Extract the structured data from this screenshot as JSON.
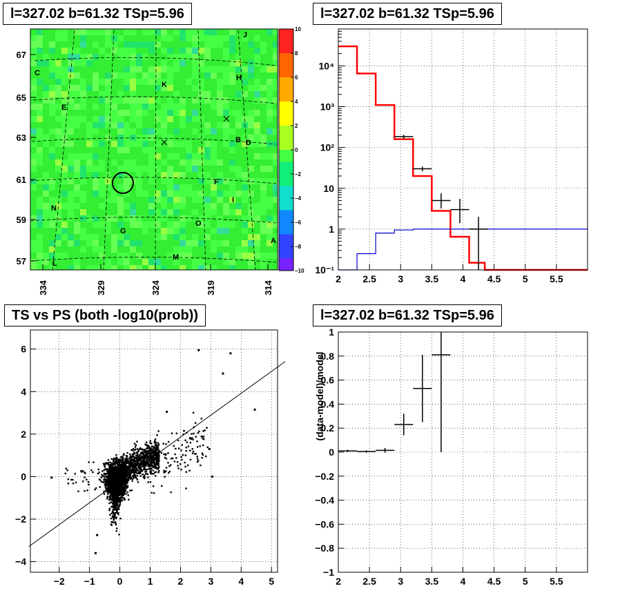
{
  "titles": {
    "skymap": "l=327.02 b=61.32 TSp=5.96",
    "spectrum": "l=327.02 b=61.32 TSp=5.96",
    "scatter": "TS vs PS (both -log10(prob))",
    "residual": "l=327.02 b=61.32 TSp=5.96"
  },
  "chart_data": [
    {
      "type": "heatmap",
      "title": "l=327.02 b=61.32 TSp=5.96",
      "x_ticks": [
        "334",
        "329",
        "324",
        "319",
        "314"
      ],
      "y_ticks": [
        "67",
        "65",
        "63",
        "61",
        "59",
        "57"
      ],
      "colorbar": {
        "range": [
          -10,
          10
        ],
        "ticks": [
          "10",
          "8",
          "6",
          "4",
          "2",
          "0",
          "−2",
          "−4",
          "−6",
          "−8",
          "−10"
        ]
      },
      "source_labels": [
        "J",
        "C",
        "H",
        "K",
        "E",
        "B",
        "D",
        "F",
        "I",
        "N",
        "G",
        "O",
        "A",
        "M",
        "L"
      ],
      "base_value": 0
    },
    {
      "type": "line",
      "title": "l=327.02 b=61.32 TSp=5.96",
      "x_ticks": [
        "2",
        "2.5",
        "3",
        "3.5",
        "4",
        "4.5",
        "5",
        "5.5"
      ],
      "y_ticks": [
        "10⁻¹",
        "1",
        "10",
        "10²",
        "10³",
        "10⁴"
      ],
      "xlim": [
        2,
        6
      ],
      "ylog": true,
      "ylim": [
        0.1,
        80000
      ],
      "grid": true,
      "series": [
        {
          "color": "#ff0000",
          "bins": [
            [
              2.0,
              2.3,
              30000
            ],
            [
              2.3,
              2.6,
              6500
            ],
            [
              2.6,
              2.9,
              1100
            ],
            [
              2.9,
              3.2,
              160
            ],
            [
              3.2,
              3.5,
              20
            ],
            [
              3.5,
              3.8,
              2.8
            ],
            [
              3.8,
              4.1,
              0.65
            ],
            [
              4.1,
              4.35,
              0.15
            ],
            [
              4.35,
              6.0,
              0.1
            ]
          ]
        },
        {
          "color": "#0000cc",
          "bins": [
            [
              2.0,
              2.3,
              0.07
            ],
            [
              2.3,
              2.6,
              0.25
            ],
            [
              2.6,
              2.9,
              0.8
            ],
            [
              2.9,
              3.2,
              0.95
            ],
            [
              3.2,
              6.0,
              1.0
            ]
          ]
        },
        {
          "color": "#000000",
          "style": "errorbars",
          "points": [
            [
              3.05,
              185,
              0.15,
              165,
              205
            ],
            [
              3.35,
              30,
              0.15,
              26,
              34
            ],
            [
              3.65,
              5,
              0.15,
              3.2,
              7.5
            ],
            [
              3.95,
              3,
              0.15,
              1.4,
              5.5
            ],
            [
              4.25,
              1,
              0.15,
              0.1,
              2.0
            ]
          ]
        }
      ]
    },
    {
      "type": "scatter",
      "title": "TS vs PS (both -log10(prob))",
      "x_ticks": [
        "−2",
        "−1",
        "0",
        "1",
        "2",
        "3",
        "4",
        "5"
      ],
      "y_ticks": [
        "−4",
        "−2",
        "0",
        "2",
        "4",
        "6"
      ],
      "xlim": [
        -2.95,
        5.2
      ],
      "ylim": [
        -4.5,
        6.9
      ],
      "grid": true,
      "outliers": [
        [
          2.6,
          5.95
        ],
        [
          3.65,
          5.8
        ],
        [
          4.45,
          3.15
        ],
        [
          3.4,
          4.85
        ],
        [
          2.95,
          1.3
        ],
        [
          3.05,
          0
        ],
        [
          1.55,
          3.05
        ],
        [
          -0.75,
          -2.75
        ],
        [
          -0.8,
          -3.6
        ],
        [
          -2.25,
          -0.05
        ]
      ],
      "fit_line": {
        "slope": 1.03,
        "intercept": -0.2
      }
    },
    {
      "type": "scatter",
      "title": "l=327.02 b=61.32 TSp=5.96",
      "ylabel": "(data-model)/model",
      "x_ticks": [
        "2",
        "2.5",
        "3",
        "3.5",
        "4",
        "4.5",
        "5",
        "5.5"
      ],
      "y_ticks": [
        "−1",
        "−0.8",
        "−0.6",
        "−0.4",
        "−0.2",
        "0",
        "0.2",
        "0.4",
        "0.6",
        "0.8",
        "1"
      ],
      "xlim": [
        2,
        6
      ],
      "ylim": [
        -1,
        1
      ],
      "grid": true,
      "points": [
        [
          2.15,
          0.01,
          0.15,
          0.0,
          0.02
        ],
        [
          2.45,
          0.005,
          0.15,
          -0.005,
          0.015
        ],
        [
          2.75,
          0.015,
          0.15,
          -0.005,
          0.035
        ],
        [
          3.05,
          0.23,
          0.15,
          0.14,
          0.32
        ],
        [
          3.35,
          0.53,
          0.15,
          0.25,
          0.81
        ],
        [
          3.65,
          0.81,
          0.15,
          0.0,
          1.0
        ]
      ]
    }
  ]
}
